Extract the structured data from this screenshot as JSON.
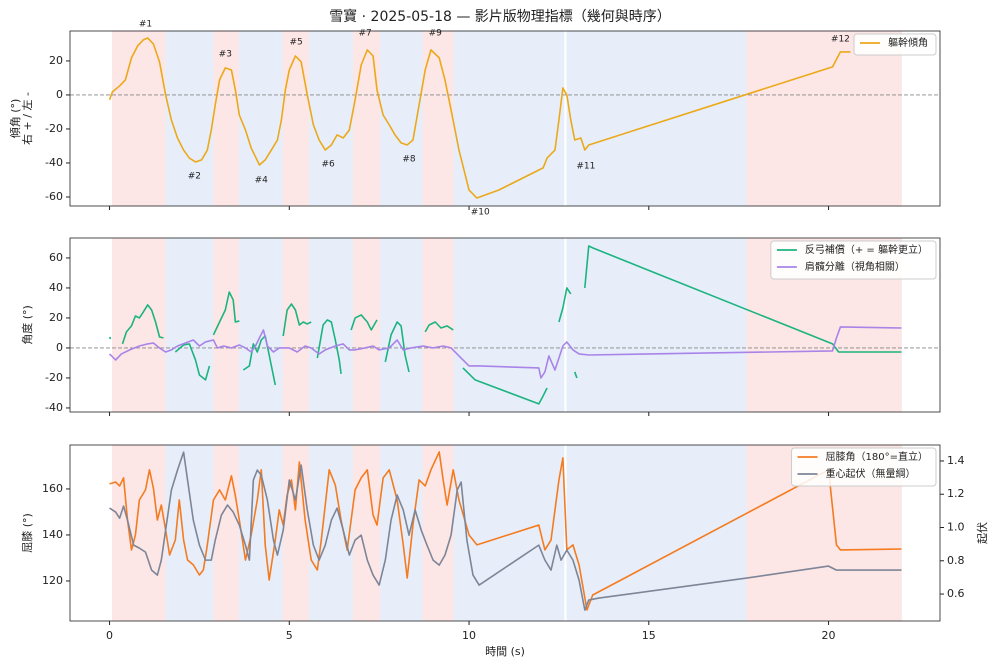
{
  "title": "雪寶 · 2025-05-18 — 影片版物理指標（幾何與時序）",
  "phases": [
    {
      "start": 0.08,
      "end": 1.56,
      "color": "#fde6e6"
    },
    {
      "start": 1.56,
      "end": 2.9,
      "color": "#e7eefa"
    },
    {
      "start": 2.9,
      "end": 3.6,
      "color": "#fde6e6"
    },
    {
      "start": 3.6,
      "end": 4.83,
      "color": "#e7eefa"
    },
    {
      "start": 4.83,
      "end": 5.55,
      "color": "#fde6e6"
    },
    {
      "start": 5.55,
      "end": 6.78,
      "color": "#e7eefa"
    },
    {
      "start": 6.78,
      "end": 7.53,
      "color": "#fde6e6"
    },
    {
      "start": 7.53,
      "end": 8.72,
      "color": "#e7eefa"
    },
    {
      "start": 8.72,
      "end": 9.58,
      "color": "#fde6e6"
    },
    {
      "start": 9.58,
      "end": 12.64,
      "color": "#e7eefa"
    },
    {
      "start": 12.72,
      "end": 17.72,
      "color": "#e7eefa"
    },
    {
      "start": 17.72,
      "end": 22.03,
      "color": "#fde6e6"
    }
  ],
  "chart_data": [
    {
      "type": "line",
      "ylabel": [
        "傾角 (°)",
        "右 + / 左 -"
      ],
      "xlim": [
        -1.1,
        23.1
      ],
      "xticks": [
        0,
        5,
        10,
        15,
        20
      ],
      "ylim": [
        -65.3,
        37.6
      ],
      "yticks": [
        -60,
        -40,
        -20,
        0,
        20
      ],
      "zero_line": true,
      "legend": "upper right",
      "series": [
        {
          "name": "軀幹傾角",
          "color": "#eba91a",
          "x": [
            0,
            0.08,
            0.28,
            0.44,
            0.61,
            0.78,
            0.94,
            1.06,
            1.22,
            1.39,
            1.56,
            1.72,
            1.89,
            2.06,
            2.22,
            2.39,
            2.56,
            2.72,
            2.83,
            2.94,
            3.06,
            3.22,
            3.39,
            3.5,
            3.61,
            3.78,
            3.94,
            4.17,
            4.33,
            4.5,
            4.67,
            4.78,
            4.89,
            5,
            5.17,
            5.33,
            5.5,
            5.67,
            5.83,
            6,
            6.17,
            6.33,
            6.5,
            6.67,
            6.83,
            7,
            7.17,
            7.33,
            7.44,
            7.61,
            7.78,
            7.94,
            8.11,
            8.28,
            8.44,
            8.61,
            8.78,
            8.94,
            9.17,
            9.33,
            9.5,
            9.72,
            10,
            10.22,
            10.83,
            12.06,
            12.17,
            12.39,
            12.5,
            12.61,
            12.72,
            12.83,
            12.94,
            13.11,
            13.22,
            13.33,
            20.11,
            20.33,
            20.61
          ],
          "values": [
            -2.9,
            1.8,
            5.3,
            8.8,
            21.8,
            28.8,
            32.4,
            33.5,
            30,
            19.4,
            0,
            -14.7,
            -25.3,
            -32.4,
            -37.1,
            -39.4,
            -38.2,
            -32.4,
            -20.6,
            -5.9,
            8.8,
            15.9,
            14.7,
            2.9,
            -11.8,
            -20.6,
            -31.2,
            -41.2,
            -38.2,
            -32.4,
            -26.5,
            -14.7,
            2.9,
            14.7,
            22.9,
            19.4,
            0,
            -17.6,
            -26.5,
            -32.4,
            -29.4,
            -23.5,
            -25.3,
            -20.6,
            -2.9,
            17.6,
            26.5,
            22.9,
            2.9,
            -11.8,
            -17.6,
            -23.5,
            -28.2,
            -29.4,
            -26.5,
            -5.9,
            14.7,
            26.5,
            21.8,
            8.8,
            -8.8,
            -32.4,
            -55.9,
            -60.6,
            -55.9,
            -42.9,
            -37.1,
            -32.4,
            -14.7,
            4.1,
            0,
            -14.7,
            -26.5,
            -25.3,
            -32.4,
            -29.4,
            16.5,
            25.3,
            25.3
          ]
        }
      ],
      "annotations": [
        {
          "text": "#1",
          "x": 1.0,
          "y": 41.8
        },
        {
          "text": "#2",
          "x": 2.36,
          "y": -47.6
        },
        {
          "text": "#3",
          "x": 3.22,
          "y": 24.1
        },
        {
          "text": "#4",
          "x": 4.22,
          "y": -50
        },
        {
          "text": "#5",
          "x": 5.19,
          "y": 31.2
        },
        {
          "text": "#6",
          "x": 6.08,
          "y": -40.6
        },
        {
          "text": "#7",
          "x": 7.11,
          "y": 36.5
        },
        {
          "text": "#8",
          "x": 8.33,
          "y": -37.6
        },
        {
          "text": "#9",
          "x": 9.06,
          "y": 36.5
        },
        {
          "text": "#10",
          "x": 10.31,
          "y": -68.8
        },
        {
          "text": "#11",
          "x": 13.25,
          "y": -41.8
        },
        {
          "text": "#12",
          "x": 20.33,
          "y": 32.9
        }
      ]
    },
    {
      "type": "line",
      "ylabel": [
        "角度 (°)"
      ],
      "xlim": [
        -1.1,
        23.1
      ],
      "xticks": [
        0,
        5,
        10,
        15,
        20
      ],
      "ylim": [
        -42.7,
        73.3
      ],
      "yticks": [
        -40,
        -20,
        0,
        20,
        40,
        60
      ],
      "zero_line": true,
      "legend": "upper right",
      "series": [
        {
          "name": "反弓補償（+ = 軀幹更立）",
          "color": "#1bb47f",
          "x": [
            0,
            0.03,
            null,
            0.36,
            0.47,
            0.61,
            0.72,
            0.83,
            0.94,
            1.06,
            1.17,
            1.28,
            1.39,
            1.5,
            null,
            1.83,
            2.06,
            2.22,
            2.39,
            2.5,
            2.67,
            2.78,
            null,
            2.89,
            3.06,
            3.22,
            3.33,
            3.44,
            3.5,
            3.61,
            null,
            3.72,
            3.89,
            4,
            4.11,
            4.22,
            4.33,
            4.44,
            4.61,
            null,
            4.83,
            4.94,
            5.06,
            5.17,
            5.28,
            5.39,
            5.5,
            5.61,
            null,
            5.78,
            5.94,
            6.06,
            6.17,
            6.28,
            6.39,
            6.44,
            null,
            6.72,
            6.83,
            7,
            7.17,
            7.28,
            7.44,
            null,
            7.67,
            7.83,
            8,
            8.11,
            8.22,
            8.33,
            null,
            8.78,
            8.89,
            9.06,
            9.22,
            9.39,
            9.56,
            null,
            9.83,
            10.17,
            11.94,
            12.06,
            12.17,
            null,
            12.5,
            12.61,
            12.72,
            12.83,
            null,
            12.94,
            13,
            null,
            13.22,
            13.33,
            13.44,
            20.11,
            20.28,
            22.03
          ],
          "values": [
            7.3,
            6,
            null,
            2.7,
            10.7,
            14.7,
            21.3,
            20,
            24,
            28.7,
            25.3,
            17.3,
            7.3,
            6.7,
            null,
            -2.7,
            2,
            2.7,
            -8,
            -18,
            -21.3,
            -12,
            null,
            8.7,
            17.3,
            25.3,
            37.3,
            32,
            17.3,
            18,
            null,
            -14.7,
            -12,
            2.7,
            -2.7,
            5.3,
            8,
            -4.7,
            -24.7,
            null,
            8,
            25.3,
            29.3,
            25.3,
            15.3,
            17.3,
            16,
            17.3,
            null,
            -6.7,
            15.3,
            18.7,
            17.3,
            5.3,
            -8,
            -17.3,
            null,
            12,
            20,
            22,
            17.3,
            12,
            18.7,
            null,
            -9.3,
            8.7,
            17.3,
            14.7,
            -4.7,
            -16,
            null,
            10.7,
            15.3,
            17.3,
            13.3,
            14.7,
            12,
            null,
            -13.3,
            -21.3,
            -37.3,
            -32,
            -26.7,
            null,
            17.3,
            26.7,
            40,
            36,
            null,
            -16,
            -20,
            null,
            40,
            68,
            66.7,
            2.7,
            -2.7,
            -2.7
          ]
        },
        {
          "name": "肩髖分離（視角相關）",
          "color": "#a984e8",
          "x": [
            0,
            0.17,
            0.33,
            0.56,
            0.83,
            1.06,
            1.22,
            1.39,
            1.56,
            1.72,
            1.89,
            2.11,
            2.33,
            2.5,
            2.67,
            2.89,
            3,
            3.17,
            3.39,
            3.61,
            3.78,
            3.94,
            4.06,
            4.17,
            4.28,
            4.39,
            4.56,
            4.72,
            5,
            5.22,
            5.44,
            5.61,
            5.83,
            6,
            6.28,
            6.5,
            6.67,
            6.83,
            7.11,
            7.33,
            7.5,
            7.78,
            8,
            8.17,
            8.39,
            8.72,
            9,
            9.28,
            9.5,
            9.72,
            10,
            10.28,
            11.94,
            12,
            12.11,
            12.22,
            12.39,
            12.61,
            12.72,
            12.89,
            13.06,
            13.33,
            20.11,
            20.22,
            20.33,
            22.03
          ],
          "values": [
            -4,
            -8,
            -4,
            -1.3,
            1.3,
            2.7,
            3.3,
            0,
            -2.7,
            -1.3,
            1.3,
            3.3,
            5.3,
            1.3,
            4,
            5.3,
            0,
            1.3,
            0,
            2,
            0,
            -2.7,
            1.3,
            6.7,
            12,
            1.3,
            -2.7,
            0,
            0,
            -2.7,
            1.3,
            0,
            -4,
            -1.3,
            1.3,
            2.7,
            -1.3,
            -1.3,
            0,
            1.3,
            -1.3,
            0,
            5.3,
            -1.3,
            0,
            1.3,
            0,
            1.3,
            0,
            -5.3,
            -12,
            -12,
            -13.3,
            -20,
            -16,
            -5.3,
            -14.7,
            1.3,
            4,
            -1.3,
            -4,
            -4.7,
            -2,
            6.7,
            14,
            13.3
          ]
        }
      ]
    },
    {
      "type": "line",
      "ylabel": [
        "屈膝 (°)"
      ],
      "y2label": "起伏",
      "xlabel": "時間 (s)",
      "xlim": [
        -1.1,
        23.1
      ],
      "xticks": [
        0,
        5,
        10,
        15,
        20
      ],
      "ylim": [
        102.6,
        179.1
      ],
      "yticks": [
        120,
        140,
        160
      ],
      "y2lim": [
        0.438,
        1.496
      ],
      "y2ticks": [
        0.6,
        0.8,
        {
          "value": 1,
          "label": "1.0"
        },
        1.2,
        1.4
      ],
      "legend": "upper right",
      "series": [
        {
          "name": "屈膝角（180°=直立）",
          "color": "#f47b20",
          "x": [
            0,
            0.17,
            0.28,
            0.39,
            0.5,
            0.61,
            0.72,
            0.83,
            1,
            1.11,
            1.22,
            1.33,
            1.44,
            1.56,
            1.67,
            1.83,
            1.94,
            2.06,
            2.17,
            2.33,
            2.5,
            2.61,
            2.72,
            2.89,
            3.06,
            3.22,
            3.39,
            3.5,
            3.61,
            3.78,
            3.94,
            4.11,
            4.22,
            4.33,
            4.44,
            4.61,
            4.72,
            4.83,
            4.94,
            5.06,
            5.17,
            5.28,
            5.44,
            5.61,
            5.78,
            5.89,
            6,
            6.11,
            6.28,
            6.44,
            6.61,
            6.72,
            6.83,
            7,
            7.17,
            7.33,
            7.44,
            7.61,
            7.78,
            8,
            8.17,
            8.28,
            8.44,
            8.61,
            8.78,
            8.94,
            9.17,
            9.28,
            9.39,
            9.56,
            9.72,
            10,
            10.22,
            11.94,
            12.11,
            12.28,
            12.5,
            12.61,
            12.72,
            12.89,
            13.06,
            13.28,
            13.44,
            20,
            20.22,
            20.33,
            22.03
          ],
          "values": [
            162.2,
            163,
            161.3,
            164.8,
            146.5,
            133.5,
            140,
            155.2,
            159.6,
            168.3,
            160.4,
            146.5,
            153,
            142.2,
            131.3,
            137.8,
            155.2,
            137.8,
            129.1,
            127,
            122.6,
            124.8,
            135.7,
            155.2,
            159.6,
            155.2,
            165.7,
            157,
            146.5,
            129.1,
            140,
            155.2,
            168.3,
            135.7,
            120.4,
            137.8,
            150.9,
            144.3,
            157.4,
            163.9,
            150.9,
            171.7,
            146.5,
            129.1,
            124.8,
            137.8,
            153,
            168.3,
            161.7,
            146.5,
            133.5,
            146.5,
            159.6,
            164.8,
            168.3,
            148.7,
            144.3,
            164.8,
            168.3,
            155.2,
            135.7,
            121.3,
            144.3,
            163.9,
            161.3,
            168.3,
            176.1,
            163.9,
            153,
            168.3,
            155.2,
            140,
            135.7,
            144.3,
            133.5,
            137.8,
            163.9,
            173.5,
            133.5,
            135.7,
            127,
            107.4,
            113.9,
            168.3,
            135.7,
            133.5,
            133.9
          ]
        },
        {
          "name": "重心起伏（無量綱）",
          "color": "#7d8597",
          "axis": "y2",
          "x": [
            0,
            0.17,
            0.28,
            0.39,
            0.5,
            0.67,
            0.83,
            1,
            1.17,
            1.33,
            1.44,
            1.56,
            1.72,
            1.89,
            2.06,
            2.17,
            2.33,
            2.5,
            2.67,
            2.83,
            2.94,
            3.11,
            3.28,
            3.44,
            3.61,
            3.78,
            3.89,
            4,
            4.11,
            4.22,
            4.39,
            4.56,
            4.67,
            4.83,
            5,
            5.17,
            5.33,
            5.5,
            5.67,
            5.83,
            6,
            6.17,
            6.33,
            6.5,
            6.67,
            6.83,
            7,
            7.17,
            7.33,
            7.5,
            7.67,
            7.83,
            8,
            8.17,
            8.33,
            8.5,
            8.67,
            8.83,
            9,
            9.17,
            9.33,
            9.5,
            9.67,
            9.78,
            9.94,
            10.11,
            10.28,
            11.94,
            12.11,
            12.28,
            12.44,
            12.56,
            12.72,
            12.89,
            13.06,
            13.22,
            13.33,
            13.61,
            17.72,
            20,
            20.22,
            22.03
          ],
          "values": [
            1.117,
            1.093,
            1.056,
            1.129,
            1.044,
            0.894,
            0.876,
            0.852,
            0.744,
            0.714,
            0.804,
            0.984,
            1.225,
            1.345,
            1.453,
            1.285,
            1.044,
            0.894,
            0.804,
            0.804,
            0.924,
            1.074,
            1.135,
            1.093,
            1.014,
            0.894,
            0.804,
            1.285,
            1.345,
            1.315,
            1.165,
            0.924,
            0.834,
            0.984,
            1.285,
            1.165,
            1.375,
            1.105,
            0.894,
            0.804,
            0.894,
            1.044,
            1.117,
            0.984,
            0.834,
            0.924,
            0.954,
            0.804,
            0.714,
            0.654,
            0.804,
            1.044,
            1.195,
            1.105,
            0.954,
            1.105,
            0.984,
            0.894,
            0.804,
            0.774,
            0.834,
            0.954,
            1.225,
            1.273,
            0.924,
            0.714,
            0.654,
            0.894,
            0.804,
            0.744,
            0.894,
            0.804,
            0.864,
            0.804,
            0.684,
            0.504,
            0.564,
            0.576,
            0.696,
            0.768,
            0.744,
            0.744
          ]
        }
      ]
    }
  ]
}
